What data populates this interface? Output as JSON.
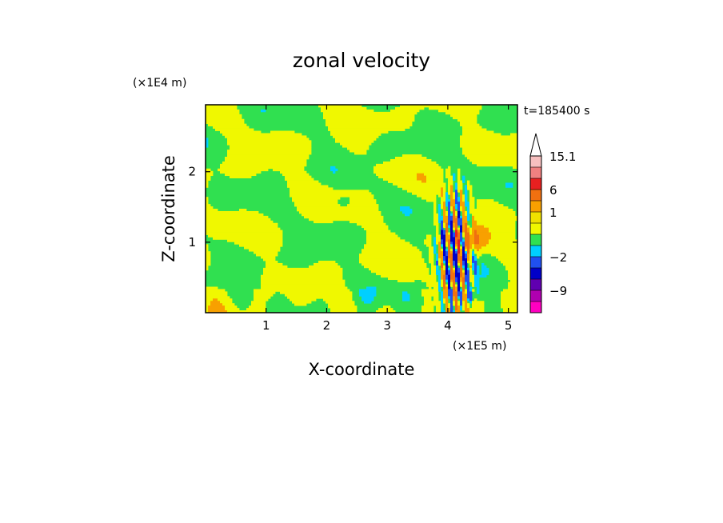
{
  "chart_data": {
    "type": "heatmap",
    "title": "zonal velocity",
    "xlabel": "X-coordinate",
    "ylabel": "Z-coordinate",
    "x_unit": "(×1E5 m)",
    "y_unit": "(×1E4 m)",
    "time_label": "t=185400 s",
    "xlim": [
      0,
      5.15
    ],
    "ylim": [
      0,
      2.95
    ],
    "x_ticks": [
      {
        "value": 1,
        "label": "1"
      },
      {
        "value": 2,
        "label": "2"
      },
      {
        "value": 3,
        "label": "3"
      },
      {
        "value": 4,
        "label": "4"
      },
      {
        "value": 5,
        "label": "5"
      }
    ],
    "y_ticks": [
      {
        "value": 1,
        "label": "1"
      },
      {
        "value": 2,
        "label": "2"
      }
    ],
    "colorbar": {
      "labels": [
        "15.1",
        "6",
        "1",
        "−2",
        "−9"
      ],
      "levels": [
        {
          "value": 15.1,
          "color": "#f7c0c0"
        },
        {
          "value": 12,
          "color": "#f08080"
        },
        {
          "value": 9,
          "color": "#e82020"
        },
        {
          "value": 6,
          "color": "#f07010"
        },
        {
          "value": 3,
          "color": "#f8a000"
        },
        {
          "value": 1,
          "color": "#f0e000"
        },
        {
          "value": 0.5,
          "color": "#f0f800"
        },
        {
          "value": 0,
          "color": "#30e050"
        },
        {
          "value": -1,
          "color": "#00d0ff"
        },
        {
          "value": -2,
          "color": "#2050f0"
        },
        {
          "value": -4,
          "color": "#0000c8"
        },
        {
          "value": -6,
          "color": "#6000b0"
        },
        {
          "value": -9,
          "color": "#b000b0"
        },
        {
          "value": -12,
          "color": "#ff00c0"
        }
      ],
      "extends_max": true
    },
    "grid": false
  }
}
